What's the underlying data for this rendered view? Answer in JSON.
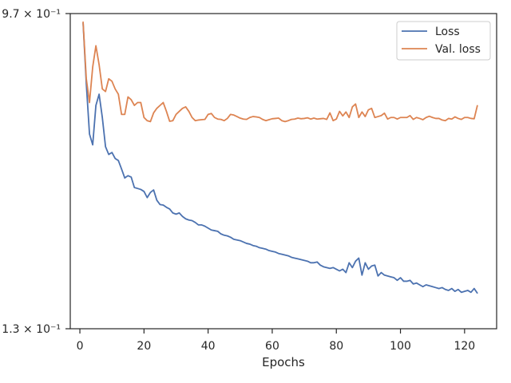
{
  "chart_data": {
    "type": "line",
    "title": "",
    "xlabel": "Epochs",
    "ylabel": "",
    "xlim": [
      -3,
      130
    ],
    "ylim": [
      0.13,
      0.97
    ],
    "y_scale": "log",
    "xticks": [
      0,
      20,
      40,
      60,
      80,
      100,
      120
    ],
    "ytick_labels": [
      {
        "value": 0.97,
        "label": "9.7 × 10⁻¹"
      },
      {
        "value": 0.13,
        "label": "1.3 × 10⁻¹"
      }
    ],
    "grid": false,
    "legend_position": "top-right",
    "series": [
      {
        "name": "Loss",
        "color": "#4c72b0",
        "x": [
          1,
          2,
          3,
          4,
          5,
          6,
          7,
          8,
          9,
          10,
          11,
          12,
          13,
          14,
          15,
          16,
          17,
          18,
          19,
          20,
          21,
          22,
          23,
          24,
          25,
          26,
          27,
          28,
          29,
          30,
          31,
          32,
          33,
          34,
          35,
          36,
          37,
          38,
          39,
          40,
          41,
          42,
          43,
          44,
          45,
          46,
          47,
          48,
          49,
          50,
          51,
          52,
          53,
          54,
          55,
          56,
          57,
          58,
          59,
          60,
          61,
          62,
          63,
          64,
          65,
          66,
          67,
          68,
          69,
          70,
          71,
          72,
          73,
          74,
          75,
          76,
          77,
          78,
          79,
          80,
          81,
          82,
          83,
          84,
          85,
          86,
          87,
          88,
          89,
          90,
          91,
          92,
          93,
          94,
          95,
          96,
          97,
          98,
          99,
          100,
          101,
          102,
          103,
          104,
          105,
          106,
          107,
          108,
          109,
          110,
          111,
          112,
          113,
          114,
          115,
          116,
          117,
          118,
          119,
          120,
          121,
          122,
          123,
          124
        ],
        "values": [
          0.915,
          0.62,
          0.45,
          0.42,
          0.54,
          0.58,
          0.5,
          0.415,
          0.395,
          0.4,
          0.385,
          0.38,
          0.36,
          0.34,
          0.345,
          0.342,
          0.32,
          0.318,
          0.316,
          0.312,
          0.3,
          0.31,
          0.315,
          0.295,
          0.287,
          0.286,
          0.282,
          0.279,
          0.272,
          0.27,
          0.272,
          0.266,
          0.262,
          0.26,
          0.259,
          0.256,
          0.252,
          0.252,
          0.25,
          0.247,
          0.244,
          0.243,
          0.242,
          0.238,
          0.236,
          0.235,
          0.233,
          0.23,
          0.229,
          0.228,
          0.226,
          0.224,
          0.223,
          0.221,
          0.22,
          0.218,
          0.217,
          0.216,
          0.214,
          0.213,
          0.212,
          0.21,
          0.209,
          0.208,
          0.207,
          0.205,
          0.204,
          0.203,
          0.202,
          0.201,
          0.2,
          0.198,
          0.198,
          0.199,
          0.195,
          0.193,
          0.192,
          0.191,
          0.192,
          0.19,
          0.188,
          0.19,
          0.186,
          0.198,
          0.192,
          0.2,
          0.204,
          0.183,
          0.198,
          0.19,
          0.194,
          0.195,
          0.182,
          0.186,
          0.183,
          0.182,
          0.181,
          0.18,
          0.177,
          0.18,
          0.176,
          0.176,
          0.177,
          0.173,
          0.174,
          0.172,
          0.17,
          0.172,
          0.171,
          0.17,
          0.169,
          0.168,
          0.169,
          0.167,
          0.166,
          0.168,
          0.165,
          0.167,
          0.164,
          0.165,
          0.166,
          0.164,
          0.168,
          0.163
        ]
      },
      {
        "name": "Val. loss",
        "color": "#dd8452",
        "x": [
          1,
          2,
          3,
          4,
          5,
          6,
          7,
          8,
          9,
          10,
          11,
          12,
          13,
          14,
          15,
          16,
          17,
          18,
          19,
          20,
          21,
          22,
          23,
          24,
          25,
          26,
          27,
          28,
          29,
          30,
          31,
          32,
          33,
          34,
          35,
          36,
          37,
          38,
          39,
          40,
          41,
          42,
          43,
          44,
          45,
          46,
          47,
          48,
          49,
          50,
          51,
          52,
          53,
          54,
          55,
          56,
          57,
          58,
          59,
          60,
          61,
          62,
          63,
          64,
          65,
          66,
          67,
          68,
          69,
          70,
          71,
          72,
          73,
          74,
          75,
          76,
          77,
          78,
          79,
          80,
          81,
          82,
          83,
          84,
          85,
          86,
          87,
          88,
          89,
          90,
          91,
          92,
          93,
          94,
          95,
          96,
          97,
          98,
          99,
          100,
          101,
          102,
          103,
          104,
          105,
          106,
          107,
          108,
          109,
          110,
          111,
          112,
          113,
          114,
          115,
          116,
          117,
          118,
          119,
          120,
          121,
          122,
          123,
          124
        ],
        "values": [
          0.92,
          0.64,
          0.55,
          0.69,
          0.79,
          0.7,
          0.6,
          0.59,
          0.64,
          0.63,
          0.6,
          0.58,
          0.51,
          0.51,
          0.57,
          0.56,
          0.54,
          0.55,
          0.55,
          0.5,
          0.49,
          0.487,
          0.515,
          0.53,
          0.54,
          0.55,
          0.52,
          0.488,
          0.49,
          0.51,
          0.52,
          0.53,
          0.535,
          0.52,
          0.5,
          0.49,
          0.492,
          0.493,
          0.494,
          0.51,
          0.513,
          0.5,
          0.495,
          0.494,
          0.49,
          0.497,
          0.51,
          0.508,
          0.503,
          0.498,
          0.495,
          0.494,
          0.5,
          0.503,
          0.502,
          0.5,
          0.494,
          0.49,
          0.493,
          0.496,
          0.497,
          0.498,
          0.49,
          0.487,
          0.49,
          0.494,
          0.495,
          0.498,
          0.496,
          0.497,
          0.499,
          0.495,
          0.498,
          0.495,
          0.496,
          0.497,
          0.494,
          0.515,
          0.49,
          0.495,
          0.52,
          0.505,
          0.518,
          0.5,
          0.535,
          0.545,
          0.5,
          0.518,
          0.503,
          0.525,
          0.53,
          0.5,
          0.503,
          0.506,
          0.514,
          0.495,
          0.5,
          0.5,
          0.495,
          0.5,
          0.5,
          0.5,
          0.506,
          0.494,
          0.5,
          0.497,
          0.493,
          0.5,
          0.504,
          0.5,
          0.497,
          0.497,
          0.492,
          0.49,
          0.497,
          0.495,
          0.502,
          0.497,
          0.494,
          0.5,
          0.5,
          0.497,
          0.496,
          0.54
        ]
      }
    ]
  }
}
